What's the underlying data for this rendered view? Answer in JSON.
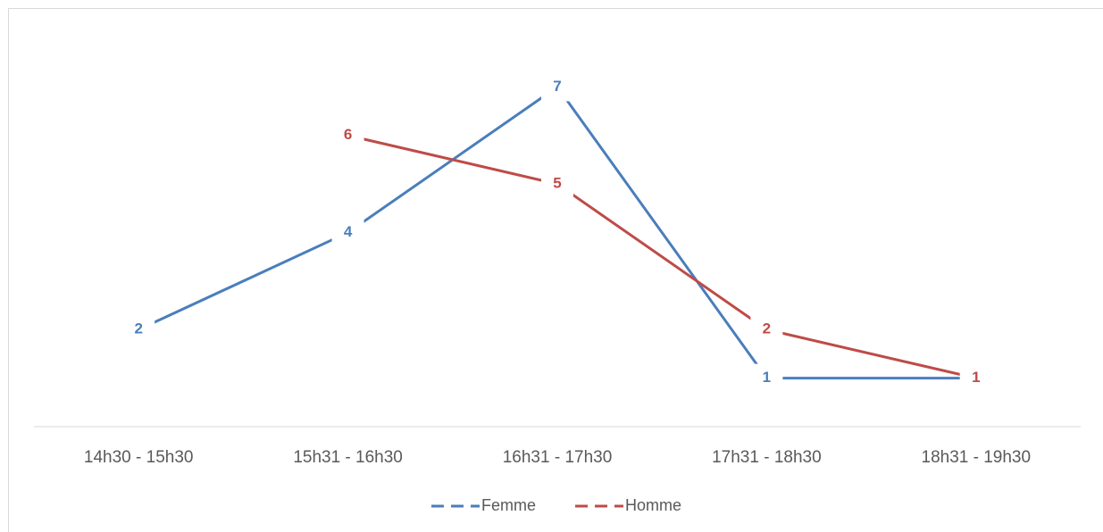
{
  "chart_data": {
    "type": "line",
    "categories": [
      "14h30 - 15h30",
      "15h31 - 16h30",
      "16h31 - 17h30",
      "17h31 - 18h30",
      "18h31 - 19h30"
    ],
    "series": [
      {
        "name": "Femme",
        "color": "#4a7ebb",
        "values": [
          2,
          4,
          7,
          1,
          1
        ]
      },
      {
        "name": "Homme",
        "color": "#be4b48",
        "values": [
          null,
          6,
          5,
          2,
          1
        ]
      }
    ],
    "ylim": [
      0,
      8
    ],
    "data_labels": true,
    "legend": "bottom"
  }
}
